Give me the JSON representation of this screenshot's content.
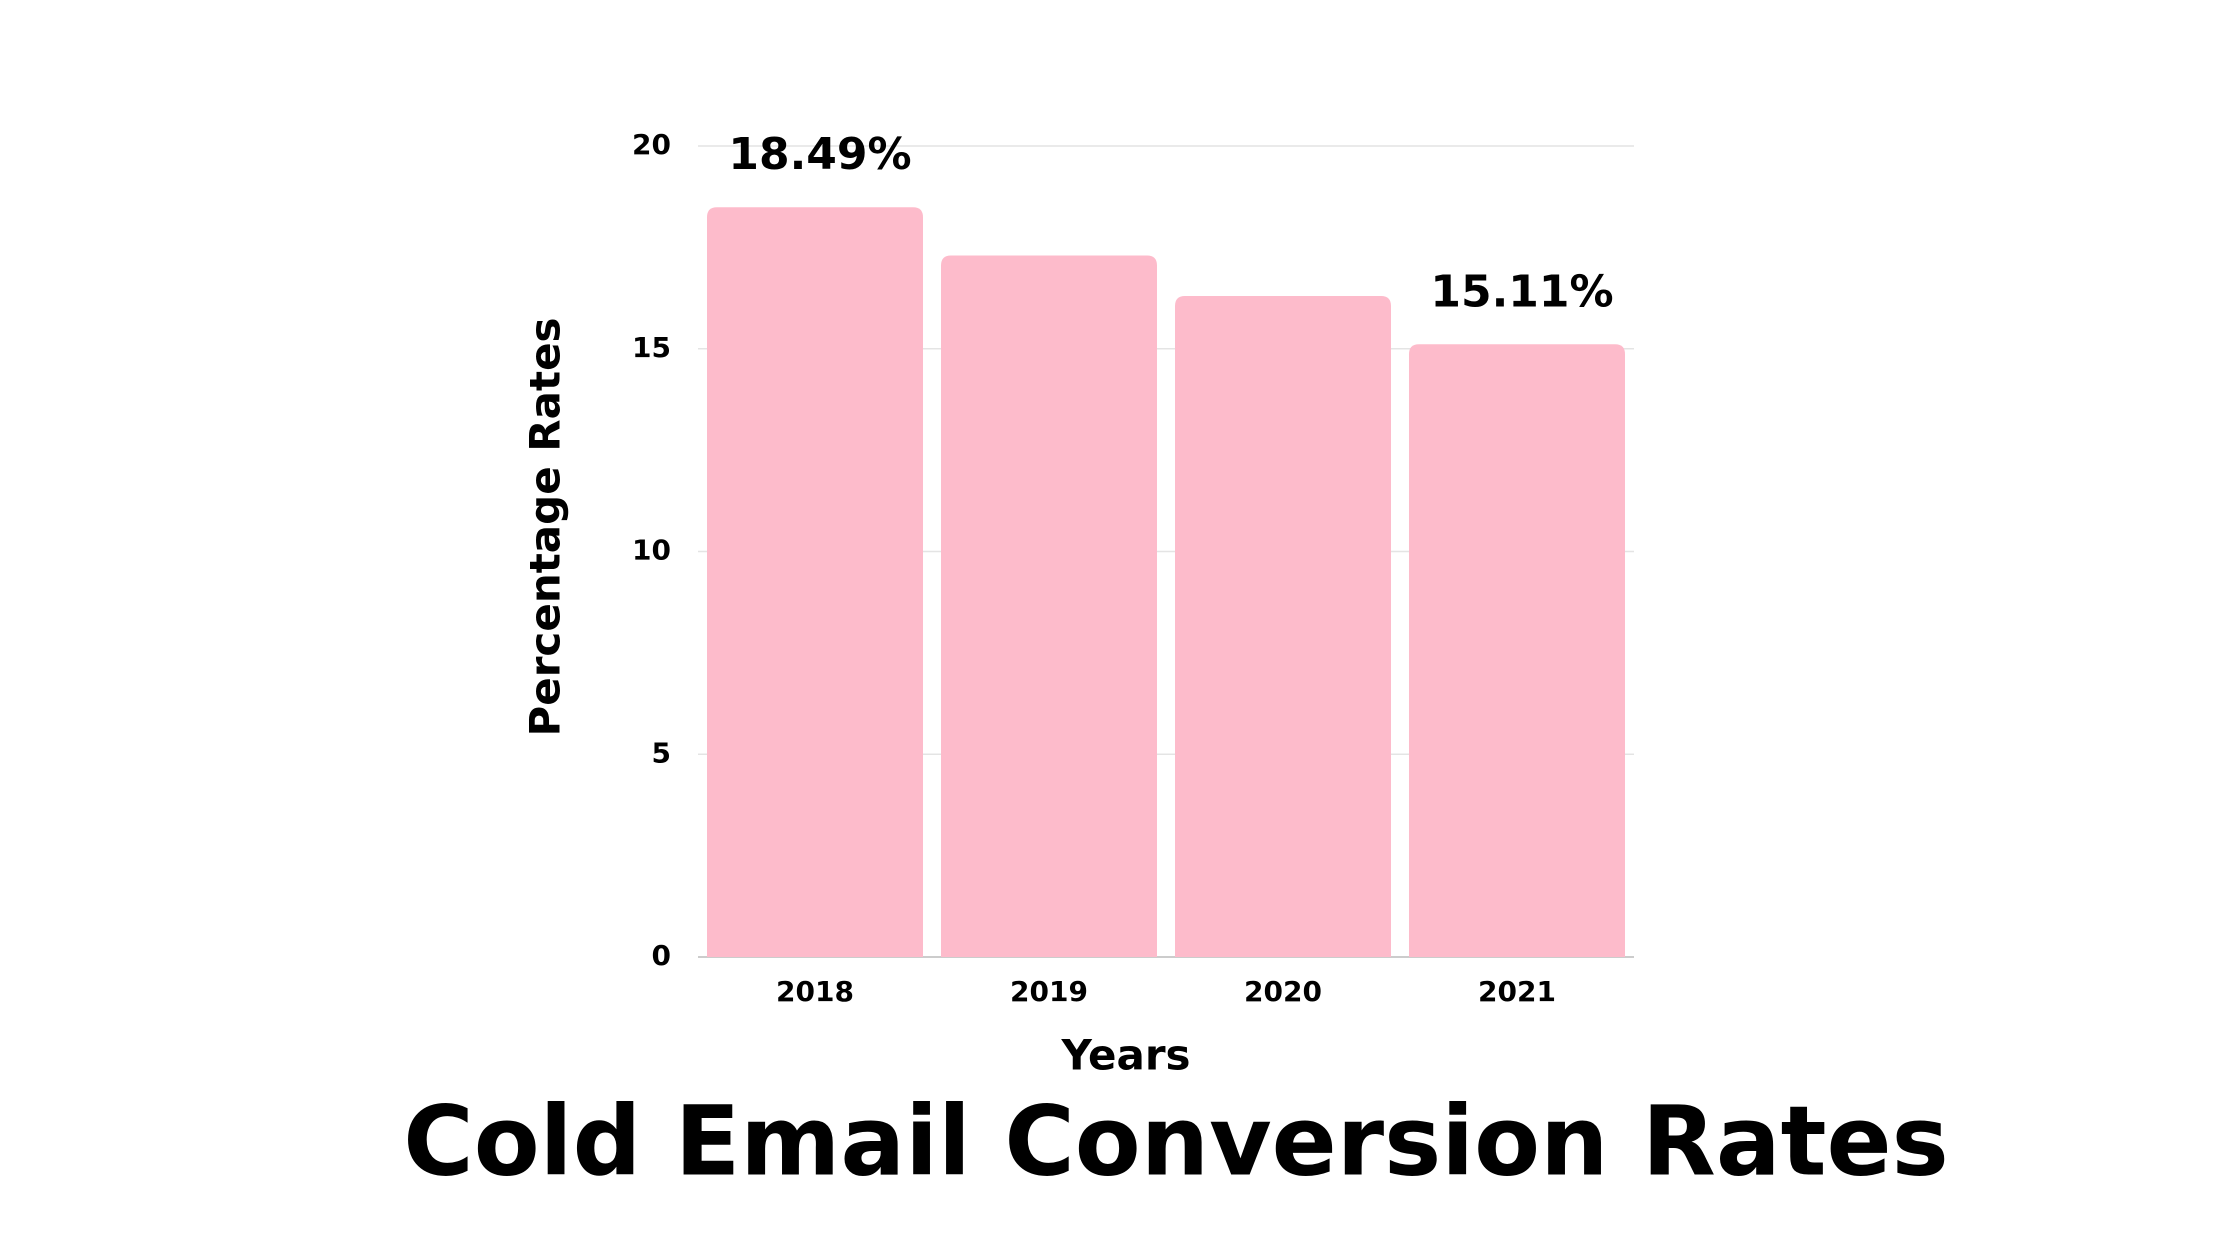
{
  "chart_data": {
    "type": "bar",
    "title": "Cold Email Conversion Rates",
    "x_label": "Years",
    "y_label": "Percentage Rates",
    "categories": [
      "2018",
      "2019",
      "2020",
      "2021"
    ],
    "values": [
      18.49,
      17.3,
      16.3,
      15.11
    ],
    "value_labels": [
      "18.49%",
      null,
      null,
      "15.11%"
    ],
    "color": "#fdbbcb",
    "ylim": [
      0,
      20
    ],
    "yticks": [
      0,
      5,
      10,
      15,
      20
    ],
    "grid": true
  }
}
